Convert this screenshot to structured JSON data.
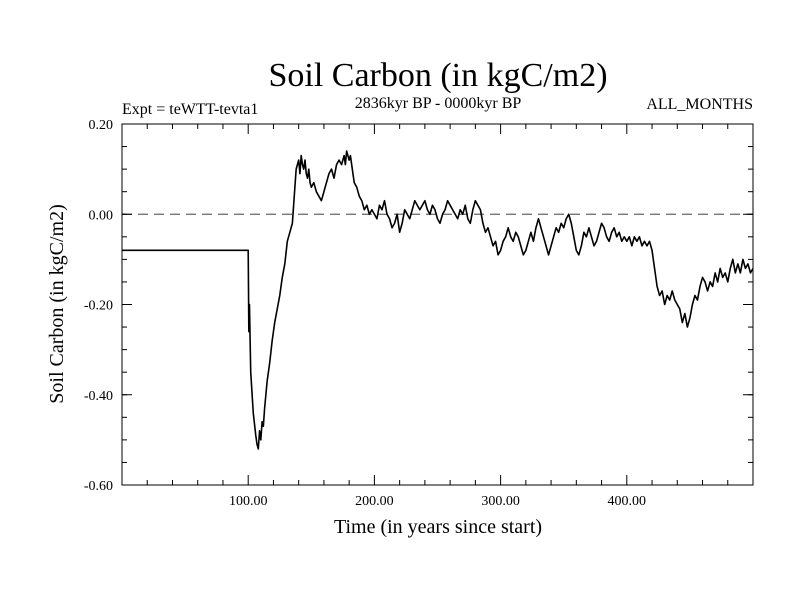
{
  "chart_data": {
    "type": "line",
    "title": "Soil Carbon (in kgC/m2)",
    "subtitle": "2836kyr BP - 0000kyr BP",
    "expt_label": "Expt = teWTT-tevta1",
    "months_label": "ALL_MONTHS",
    "xlabel": "Time (in years since start)",
    "ylabel": "Soil Carbon (in kgC/m2)",
    "xlim": [
      0,
      500
    ],
    "ylim": [
      -0.6,
      0.2
    ],
    "x_ticks": [
      100,
      200,
      300,
      400
    ],
    "x_tick_labels": [
      "100.00",
      "200.00",
      "300.00",
      "400.00"
    ],
    "y_ticks": [
      0.2,
      0.0,
      -0.2,
      -0.4,
      -0.6
    ],
    "y_tick_labels": [
      "0.20",
      "0.00",
      "-0.20",
      "-0.40",
      "-0.60"
    ],
    "reference_line": {
      "y": 0.0,
      "style": "dashed"
    },
    "series": [
      {
        "name": "Soil Carbon",
        "points": [
          [
            0,
            -0.08
          ],
          [
            99,
            -0.08
          ],
          [
            100,
            -0.08
          ],
          [
            100.5,
            -0.26
          ],
          [
            101,
            -0.2
          ],
          [
            102,
            -0.35
          ],
          [
            104,
            -0.44
          ],
          [
            106,
            -0.49
          ],
          [
            107,
            -0.51
          ],
          [
            108,
            -0.52
          ],
          [
            109,
            -0.48
          ],
          [
            110,
            -0.5
          ],
          [
            111,
            -0.46
          ],
          [
            112,
            -0.47
          ],
          [
            113,
            -0.43
          ],
          [
            115,
            -0.37
          ],
          [
            117,
            -0.33
          ],
          [
            119,
            -0.28
          ],
          [
            121,
            -0.24
          ],
          [
            123,
            -0.21
          ],
          [
            125,
            -0.18
          ],
          [
            127,
            -0.14
          ],
          [
            129,
            -0.11
          ],
          [
            131,
            -0.06
          ],
          [
            133,
            -0.04
          ],
          [
            135,
            -0.02
          ],
          [
            136,
            0.02
          ],
          [
            137,
            0.06
          ],
          [
            138,
            0.1
          ],
          [
            139,
            0.11
          ],
          [
            140,
            0.12
          ],
          [
            141,
            0.09
          ],
          [
            142,
            0.13
          ],
          [
            143,
            0.11
          ],
          [
            144,
            0.1
          ],
          [
            145,
            0.12
          ],
          [
            146,
            0.09
          ],
          [
            147,
            0.08
          ],
          [
            148,
            0.1
          ],
          [
            149,
            0.07
          ],
          [
            150,
            0.06
          ],
          [
            152,
            0.07
          ],
          [
            154,
            0.05
          ],
          [
            156,
            0.04
          ],
          [
            158,
            0.03
          ],
          [
            160,
            0.05
          ],
          [
            162,
            0.07
          ],
          [
            164,
            0.09
          ],
          [
            166,
            0.1
          ],
          [
            168,
            0.08
          ],
          [
            170,
            0.11
          ],
          [
            172,
            0.12
          ],
          [
            174,
            0.11
          ],
          [
            176,
            0.13
          ],
          [
            177,
            0.11
          ],
          [
            178,
            0.14
          ],
          [
            180,
            0.12
          ],
          [
            181,
            0.13
          ],
          [
            182,
            0.11
          ],
          [
            184,
            0.07
          ],
          [
            186,
            0.06
          ],
          [
            188,
            0.04
          ],
          [
            190,
            0.03
          ],
          [
            192,
            0.01
          ],
          [
            194,
            0.02
          ],
          [
            196,
            0.0
          ],
          [
            198,
            0.01
          ],
          [
            200,
            0.0
          ],
          [
            202,
            -0.01
          ],
          [
            204,
            0.02
          ],
          [
            206,
            0.01
          ],
          [
            208,
            0.03
          ],
          [
            210,
            0.0
          ],
          [
            212,
            -0.01
          ],
          [
            214,
            -0.03
          ],
          [
            216,
            -0.02
          ],
          [
            218,
            0.0
          ],
          [
            220,
            -0.04
          ],
          [
            222,
            -0.02
          ],
          [
            224,
            0.01
          ],
          [
            226,
            0.0
          ],
          [
            228,
            -0.01
          ],
          [
            230,
            0.01
          ],
          [
            232,
            0.03
          ],
          [
            234,
            0.02
          ],
          [
            236,
            0.01
          ],
          [
            238,
            0.02
          ],
          [
            240,
            0.03
          ],
          [
            242,
            0.01
          ],
          [
            244,
            0.0
          ],
          [
            246,
            0.02
          ],
          [
            248,
            0.01
          ],
          [
            250,
            -0.01
          ],
          [
            252,
            -0.02
          ],
          [
            254,
            0.0
          ],
          [
            256,
            0.01
          ],
          [
            258,
            0.03
          ],
          [
            260,
            0.02
          ],
          [
            262,
            0.01
          ],
          [
            264,
            0.0
          ],
          [
            266,
            -0.01
          ],
          [
            268,
            0.01
          ],
          [
            270,
            0.0
          ],
          [
            272,
            0.02
          ],
          [
            274,
            -0.01
          ],
          [
            276,
            -0.02
          ],
          [
            278,
            0.01
          ],
          [
            280,
            0.03
          ],
          [
            282,
            0.02
          ],
          [
            284,
            0.01
          ],
          [
            286,
            -0.02
          ],
          [
            288,
            -0.04
          ],
          [
            290,
            -0.03
          ],
          [
            292,
            -0.05
          ],
          [
            294,
            -0.07
          ],
          [
            296,
            -0.06
          ],
          [
            298,
            -0.09
          ],
          [
            300,
            -0.08
          ],
          [
            302,
            -0.06
          ],
          [
            304,
            -0.05
          ],
          [
            306,
            -0.03
          ],
          [
            308,
            -0.05
          ],
          [
            310,
            -0.06
          ],
          [
            312,
            -0.04
          ],
          [
            314,
            -0.05
          ],
          [
            316,
            -0.07
          ],
          [
            318,
            -0.09
          ],
          [
            320,
            -0.08
          ],
          [
            322,
            -0.06
          ],
          [
            324,
            -0.04
          ],
          [
            326,
            -0.06
          ],
          [
            328,
            -0.03
          ],
          [
            330,
            -0.01
          ],
          [
            332,
            -0.03
          ],
          [
            334,
            -0.05
          ],
          [
            336,
            -0.07
          ],
          [
            338,
            -0.09
          ],
          [
            340,
            -0.07
          ],
          [
            342,
            -0.05
          ],
          [
            344,
            -0.03
          ],
          [
            346,
            -0.04
          ],
          [
            348,
            -0.02
          ],
          [
            350,
            -0.03
          ],
          [
            352,
            -0.01
          ],
          [
            354,
            0.0
          ],
          [
            356,
            -0.02
          ],
          [
            358,
            -0.05
          ],
          [
            360,
            -0.08
          ],
          [
            362,
            -0.09
          ],
          [
            364,
            -0.07
          ],
          [
            366,
            -0.04
          ],
          [
            368,
            -0.05
          ],
          [
            370,
            -0.03
          ],
          [
            372,
            -0.05
          ],
          [
            374,
            -0.07
          ],
          [
            376,
            -0.06
          ],
          [
            378,
            -0.04
          ],
          [
            380,
            -0.02
          ],
          [
            382,
            -0.03
          ],
          [
            384,
            -0.05
          ],
          [
            386,
            -0.06
          ],
          [
            388,
            -0.04
          ],
          [
            390,
            -0.03
          ],
          [
            392,
            -0.05
          ],
          [
            394,
            -0.04
          ],
          [
            396,
            -0.06
          ],
          [
            398,
            -0.05
          ],
          [
            400,
            -0.06
          ],
          [
            402,
            -0.05
          ],
          [
            404,
            -0.07
          ],
          [
            406,
            -0.05
          ],
          [
            408,
            -0.06
          ],
          [
            410,
            -0.05
          ],
          [
            412,
            -0.07
          ],
          [
            414,
            -0.06
          ],
          [
            416,
            -0.07
          ],
          [
            418,
            -0.06
          ],
          [
            420,
            -0.08
          ],
          [
            422,
            -0.12
          ],
          [
            424,
            -0.16
          ],
          [
            426,
            -0.18
          ],
          [
            428,
            -0.17
          ],
          [
            430,
            -0.2
          ],
          [
            432,
            -0.18
          ],
          [
            434,
            -0.19
          ],
          [
            436,
            -0.17
          ],
          [
            438,
            -0.19
          ],
          [
            440,
            -0.2
          ],
          [
            442,
            -0.21
          ],
          [
            444,
            -0.24
          ],
          [
            446,
            -0.22
          ],
          [
            448,
            -0.25
          ],
          [
            450,
            -0.23
          ],
          [
            452,
            -0.2
          ],
          [
            454,
            -0.18
          ],
          [
            456,
            -0.19
          ],
          [
            458,
            -0.16
          ],
          [
            460,
            -0.14
          ],
          [
            462,
            -0.15
          ],
          [
            464,
            -0.17
          ],
          [
            466,
            -0.15
          ],
          [
            468,
            -0.16
          ],
          [
            470,
            -0.13
          ],
          [
            472,
            -0.15
          ],
          [
            474,
            -0.12
          ],
          [
            476,
            -0.14
          ],
          [
            478,
            -0.13
          ],
          [
            480,
            -0.15
          ],
          [
            482,
            -0.12
          ],
          [
            484,
            -0.1
          ],
          [
            486,
            -0.13
          ],
          [
            488,
            -0.11
          ],
          [
            490,
            -0.13
          ],
          [
            492,
            -0.1
          ],
          [
            494,
            -0.12
          ],
          [
            496,
            -0.11
          ],
          [
            498,
            -0.13
          ],
          [
            500,
            -0.12
          ]
        ]
      }
    ]
  }
}
